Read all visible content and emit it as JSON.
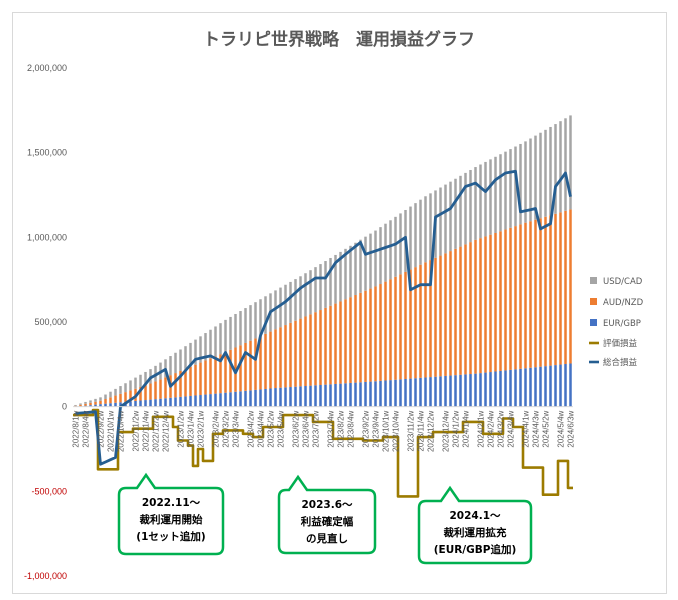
{
  "chart_data": {
    "type": "bar",
    "title": "トラリピ世界戦略　運用損益グラフ",
    "stacked_series": [
      "EUR/GBP",
      "AUD/NZD",
      "USD/CAD"
    ],
    "line_series": [
      "評価損益",
      "総合損益"
    ],
    "legend": [
      {
        "name": "USD/CAD",
        "kind": "bar",
        "color": "#a5a5a5"
      },
      {
        "name": "AUD/NZD",
        "kind": "bar",
        "color": "#ed7d31"
      },
      {
        "name": "EUR/GBP",
        "kind": "bar",
        "color": "#4472c4"
      },
      {
        "name": "評価損益",
        "kind": "line",
        "color": "#9c7b00"
      },
      {
        "name": "総合損益",
        "kind": "line",
        "color": "#255e91"
      }
    ],
    "legend_position": "right",
    "ylim": [
      -1000000,
      2000000
    ],
    "yticks": [
      {
        "label": "2,000,000",
        "value": 2000000,
        "color": "#595959"
      },
      {
        "label": "1,500,000",
        "value": 1500000,
        "color": "#595959"
      },
      {
        "label": "1,000,000",
        "value": 1000000,
        "color": "#595959"
      },
      {
        "label": "500,000",
        "value": 500000,
        "color": "#595959"
      },
      {
        "label": "0",
        "value": 0,
        "color": "#595959"
      },
      {
        "label": "-500,000",
        "value": -500000,
        "color": "#c00000"
      },
      {
        "label": "-1,000,000",
        "value": -1000000,
        "color": "#c00000"
      }
    ],
    "grid": false,
    "n_weeks": 100,
    "xtick_labels": [
      "2022/8/1w",
      "2022/8/4w",
      "2022/9/2w",
      "2022/10/1w",
      "2022/10/4w",
      "2022/11/2w",
      "2022/11/4w",
      "2022/12/2w",
      "2022/12/4w",
      "2023/1/2w",
      "2023/1/4w",
      "2023/2/1w",
      "2023/2/4w",
      "2023/3/2w",
      "2023/3/4w",
      "2023/4/2w",
      "2023/4/4w",
      "2023/5/2w",
      "2023/5/4w",
      "2023/6/2w",
      "2023/6/4w",
      "2023/7/2w",
      "2023/7/4w",
      "2023/8/2w",
      "2023/8/4w",
      "2023/9/2w",
      "2023/9/4w",
      "2023/10/1w",
      "2023/10/4w",
      "2023/11/2w",
      "2023/11/4w",
      "2023/12/2w",
      "2023/12/4w",
      "2024/1/2w",
      "2024/1/4w",
      "2024/2/1w",
      "2024/2/4w",
      "2024/3/2w",
      "2024/3/4w",
      "2024/4/1w",
      "2024/4/3w",
      "2024/5/2w",
      "2024/5/4w",
      "2024/6/3w"
    ],
    "values": {
      "EUR_GBP_anchors": [
        [
          0,
          0
        ],
        [
          5,
          15000
        ],
        [
          20,
          55000
        ],
        [
          40,
          110000
        ],
        [
          60,
          150000
        ],
        [
          80,
          195000
        ],
        [
          99,
          255000
        ]
      ],
      "AUD_NZD_anchors": [
        [
          0,
          5000
        ],
        [
          5,
          20000
        ],
        [
          15,
          95000
        ],
        [
          30,
          240000
        ],
        [
          45,
          400000
        ],
        [
          60,
          560000
        ],
        [
          70,
          680000
        ],
        [
          80,
          790000
        ],
        [
          90,
          860000
        ],
        [
          99,
          910000
        ]
      ],
      "USD_CAD_anchors": [
        [
          0,
          5000
        ],
        [
          5,
          20000
        ],
        [
          15,
          85000
        ],
        [
          30,
          190000
        ],
        [
          45,
          250000
        ],
        [
          60,
          330000
        ],
        [
          70,
          390000
        ],
        [
          80,
          430000
        ],
        [
          90,
          480000
        ],
        [
          99,
          555000
        ]
      ],
      "hyouka_steps": [
        [
          0,
          -50000
        ],
        [
          4,
          -20000
        ],
        [
          5,
          -370000
        ],
        [
          9,
          -150000
        ],
        [
          12,
          -130000
        ],
        [
          16,
          -60000
        ],
        [
          20,
          -120000
        ],
        [
          21,
          -200000
        ],
        [
          23,
          -230000
        ],
        [
          24,
          -350000
        ],
        [
          25,
          -250000
        ],
        [
          26,
          -320000
        ],
        [
          28,
          -160000
        ],
        [
          30,
          -140000
        ],
        [
          34,
          -160000
        ],
        [
          36,
          -180000
        ],
        [
          38,
          -120000
        ],
        [
          42,
          -50000
        ],
        [
          48,
          -90000
        ],
        [
          52,
          -190000
        ],
        [
          58,
          -200000
        ],
        [
          62,
          -180000
        ],
        [
          65,
          -530000
        ],
        [
          69,
          -180000
        ],
        [
          72,
          -150000
        ],
        [
          78,
          -90000
        ],
        [
          82,
          -160000
        ],
        [
          86,
          -70000
        ],
        [
          88,
          -120000
        ],
        [
          90,
          -360000
        ],
        [
          94,
          -520000
        ],
        [
          97,
          -320000
        ],
        [
          99,
          -480000
        ]
      ],
      "sougou_points": [
        [
          0,
          -40000
        ],
        [
          4,
          -30000
        ],
        [
          5,
          -340000
        ],
        [
          8,
          -300000
        ],
        [
          9,
          0
        ],
        [
          12,
          60000
        ],
        [
          15,
          170000
        ],
        [
          18,
          220000
        ],
        [
          19,
          120000
        ],
        [
          21,
          180000
        ],
        [
          24,
          280000
        ],
        [
          27,
          300000
        ],
        [
          29,
          270000
        ],
        [
          30,
          320000
        ],
        [
          32,
          200000
        ],
        [
          34,
          320000
        ],
        [
          36,
          280000
        ],
        [
          37,
          420000
        ],
        [
          39,
          560000
        ],
        [
          42,
          620000
        ],
        [
          45,
          700000
        ],
        [
          48,
          760000
        ],
        [
          50,
          760000
        ],
        [
          52,
          850000
        ],
        [
          54,
          900000
        ],
        [
          57,
          970000
        ],
        [
          58,
          900000
        ],
        [
          61,
          930000
        ],
        [
          64,
          960000
        ],
        [
          66,
          1000000
        ],
        [
          67,
          690000
        ],
        [
          69,
          720000
        ],
        [
          71,
          720000
        ],
        [
          72,
          1120000
        ],
        [
          75,
          1170000
        ],
        [
          78,
          1300000
        ],
        [
          80,
          1320000
        ],
        [
          82,
          1270000
        ],
        [
          84,
          1340000
        ],
        [
          86,
          1380000
        ],
        [
          88,
          1390000
        ],
        [
          89,
          1150000
        ],
        [
          92,
          1170000
        ],
        [
          93,
          1050000
        ],
        [
          95,
          1080000
        ],
        [
          96,
          1300000
        ],
        [
          98,
          1380000
        ],
        [
          99,
          1240000
        ]
      ]
    },
    "callouts": [
      {
        "lines": [
          "2022.11～",
          "裁利運用開始",
          "(1セット追加)"
        ]
      },
      {
        "lines": [
          "2023.6～",
          "利益確定幅",
          "の見直し"
        ]
      },
      {
        "lines": [
          "2024.1～",
          "裁利運用拡充",
          "(EUR/GBP追加)"
        ]
      }
    ],
    "callout_border_color": "#00b050"
  }
}
